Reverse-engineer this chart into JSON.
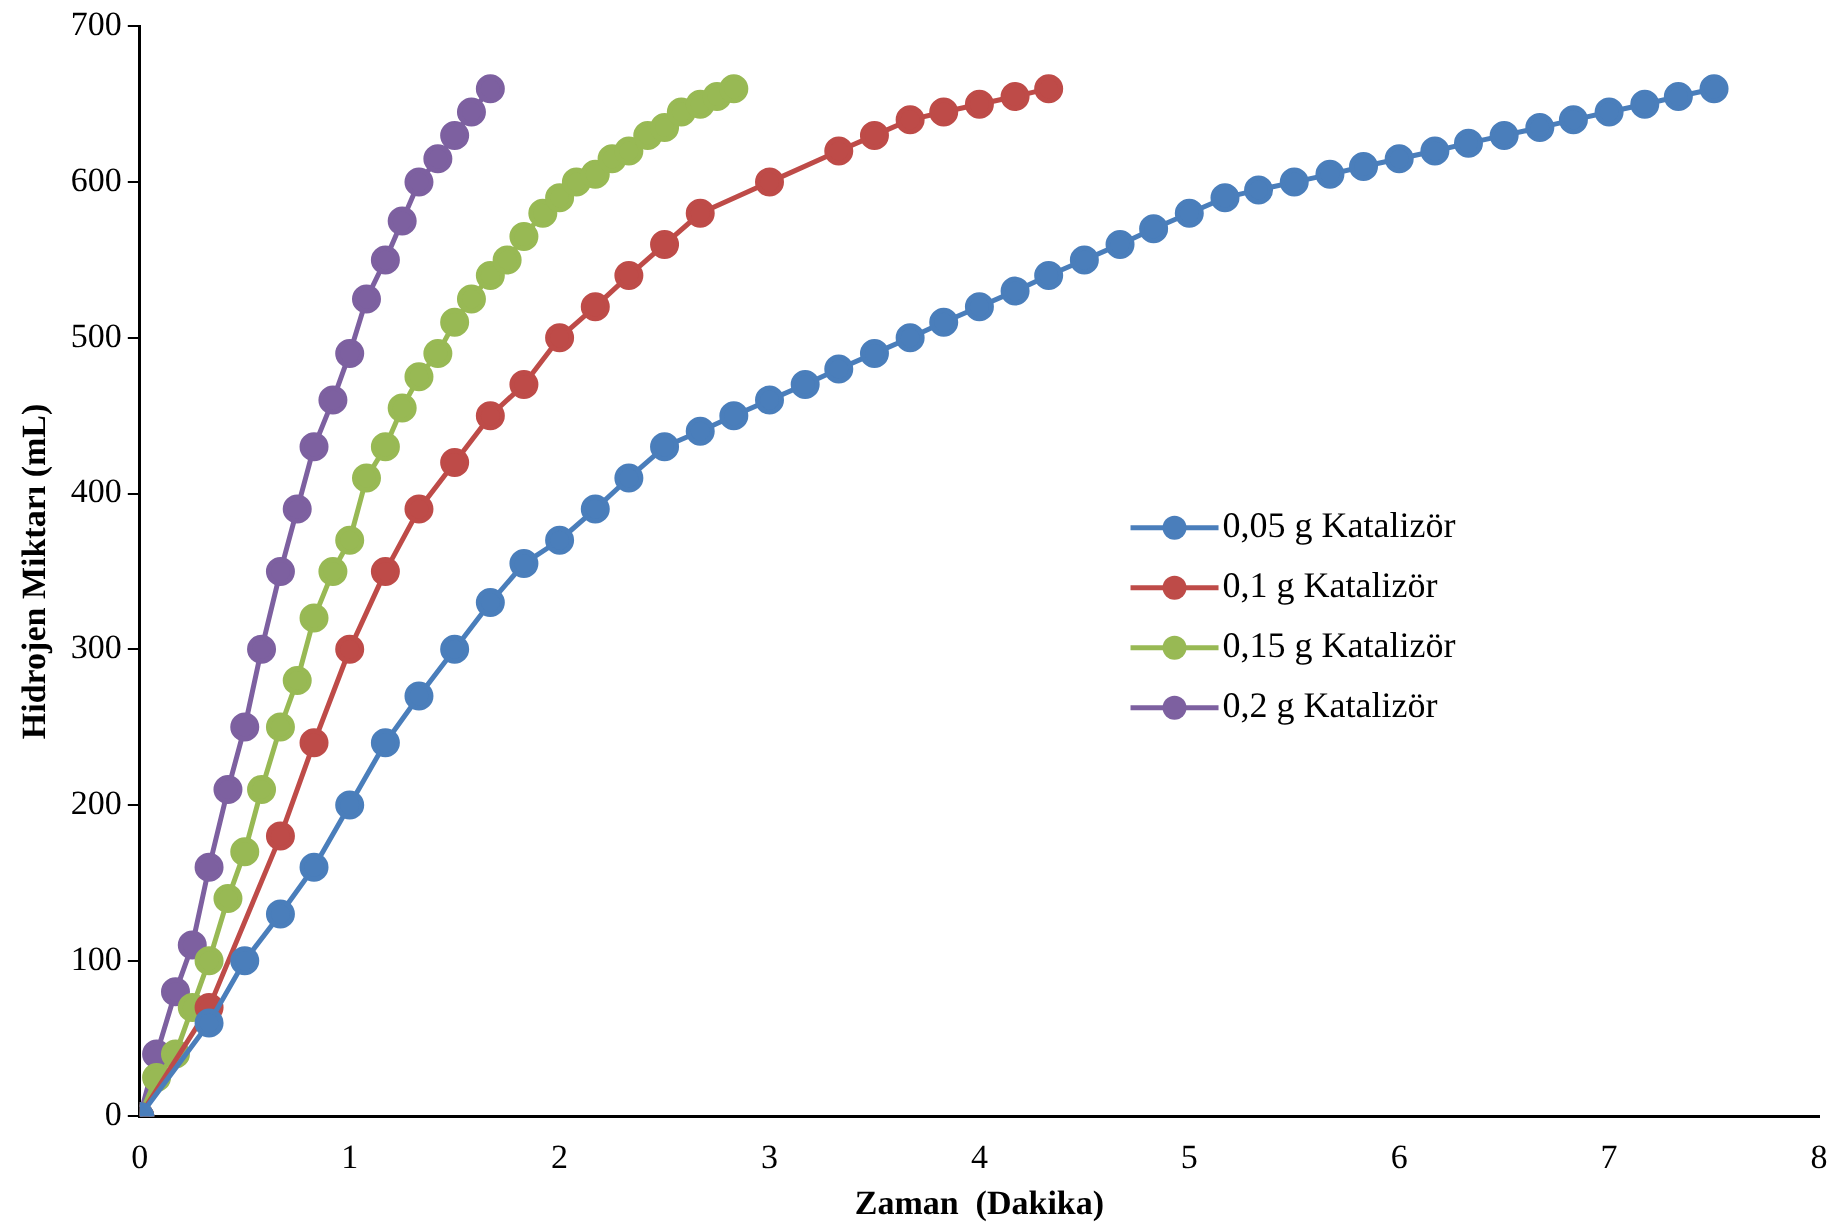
{
  "chart_data": {
    "type": "line",
    "xlabel": "Zaman  (Dakika)",
    "ylabel": "Hidrojen Miktarı (mL)",
    "xlim": [
      0,
      8
    ],
    "xticks": [
      0,
      1,
      2,
      3,
      4,
      5,
      6,
      7,
      8
    ],
    "ylim": [
      0,
      700
    ],
    "yticks": [
      0,
      100,
      200,
      300,
      400,
      500,
      600,
      700
    ],
    "grid": false,
    "legend": "right",
    "marker": "circle",
    "line_style": "solid",
    "series": [
      {
        "name": "0,05 g Katalizör",
        "color": "#4a7ebb",
        "x": [
          0,
          0.33,
          0.5,
          0.67,
          0.83,
          1,
          1.17,
          1.33,
          1.5,
          1.67,
          1.83,
          2,
          2.17,
          2.33,
          2.5,
          2.67,
          2.83,
          3,
          3.17,
          3.33,
          3.5,
          3.67,
          3.83,
          4,
          4.17,
          4.33,
          4.5,
          4.67,
          4.83,
          5,
          5.17,
          5.33,
          5.5,
          5.67,
          5.83,
          6,
          6.17,
          6.33,
          6.5,
          6.67,
          6.83,
          7,
          7.17,
          7.33,
          7.5
        ],
        "values": [
          0,
          60,
          100,
          130,
          160,
          200,
          240,
          270,
          300,
          330,
          355,
          370,
          390,
          410,
          430,
          440,
          450,
          460,
          470,
          480,
          490,
          500,
          510,
          520,
          530,
          540,
          550,
          560,
          570,
          580,
          590,
          595,
          600,
          605,
          610,
          615,
          620,
          625,
          630,
          635,
          640,
          645,
          650,
          655,
          660
        ]
      },
      {
        "name": "0,1 g Katalizör",
        "color": "#be4b48",
        "x": [
          0,
          0.33,
          0.67,
          0.83,
          1,
          1.17,
          1.33,
          1.5,
          1.67,
          1.83,
          2,
          2.17,
          2.33,
          2.5,
          2.67,
          3,
          3.33,
          3.5,
          3.67,
          3.83,
          4,
          4.17,
          4.33
        ],
        "values": [
          0,
          70,
          180,
          240,
          300,
          350,
          390,
          420,
          450,
          470,
          500,
          520,
          540,
          560,
          580,
          600,
          620,
          630,
          640,
          645,
          650,
          655,
          660
        ]
      },
      {
        "name": "0,15 g Katalizör",
        "color": "#98b954",
        "x": [
          0,
          0.08,
          0.17,
          0.25,
          0.33,
          0.42,
          0.5,
          0.58,
          0.67,
          0.75,
          0.83,
          0.92,
          1,
          1.08,
          1.17,
          1.25,
          1.33,
          1.42,
          1.5,
          1.58,
          1.67,
          1.75,
          1.83,
          1.92,
          2,
          2.08,
          2.17,
          2.25,
          2.33,
          2.42,
          2.5,
          2.58,
          2.67,
          2.75,
          2.83
        ],
        "values": [
          0,
          25,
          40,
          70,
          100,
          140,
          170,
          210,
          250,
          280,
          320,
          350,
          370,
          410,
          430,
          455,
          475,
          490,
          510,
          525,
          540,
          550,
          565,
          580,
          590,
          600,
          605,
          615,
          620,
          630,
          635,
          645,
          650,
          655,
          660
        ]
      },
      {
        "name": "0,2 g Katalizör",
        "color": "#7d60a0",
        "x": [
          0,
          0.08,
          0.17,
          0.25,
          0.33,
          0.42,
          0.5,
          0.58,
          0.67,
          0.75,
          0.83,
          0.92,
          1,
          1.08,
          1.17,
          1.25,
          1.33,
          1.42,
          1.5,
          1.58,
          1.67
        ],
        "values": [
          0,
          40,
          80,
          110,
          160,
          210,
          250,
          300,
          350,
          390,
          430,
          460,
          490,
          525,
          550,
          575,
          600,
          615,
          630,
          645,
          660
        ]
      }
    ]
  }
}
